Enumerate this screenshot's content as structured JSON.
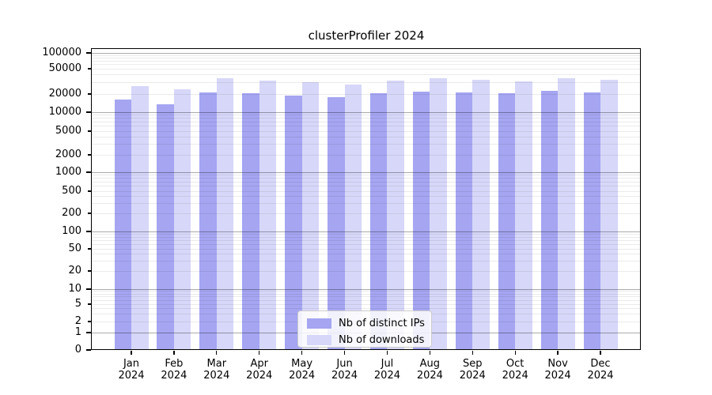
{
  "figure": {
    "title": "clusterProfiler 2024"
  },
  "chart_data": {
    "type": "bar",
    "title": "clusterProfiler 2024",
    "categories": [
      "Jan",
      "Feb",
      "Mar",
      "Apr",
      "May",
      "Jun",
      "Jul",
      "Aug",
      "Sep",
      "Oct",
      "Nov",
      "Dec"
    ],
    "year": "2024",
    "series": [
      {
        "name": "Nb of distinct IPs",
        "color": "#a5a5f2",
        "values": [
          16200,
          13400,
          21400,
          20400,
          19000,
          17600,
          20600,
          21900,
          21400,
          20800,
          22300,
          21400
        ]
      },
      {
        "name": "Nb of downloads",
        "color": "#d7d7f9",
        "values": [
          26700,
          23600,
          35500,
          32800,
          30500,
          28200,
          32900,
          35500,
          33800,
          31900,
          35500,
          33800
        ]
      }
    ],
    "xlabel": "",
    "ylabel": "",
    "yscale": "symlog",
    "ylim": [
      0,
      125000
    ],
    "y_tick_values": [
      100000,
      50000,
      20000,
      10000,
      5000,
      2000,
      1000,
      500,
      200,
      100,
      50,
      20,
      10,
      5,
      2,
      1,
      0
    ],
    "grid": true,
    "legend": {
      "position": "lower center",
      "labels": [
        "Nb of distinct IPs",
        "Nb of downloads"
      ]
    }
  }
}
